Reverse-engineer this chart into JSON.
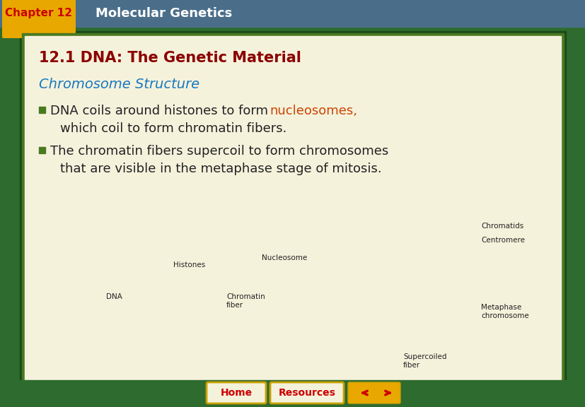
{
  "bg_outer": "#2e6b2e",
  "bg_header": "#4a6e8a",
  "bg_chapter_tab": "#e8a800",
  "bg_content": "#f5f2dc",
  "header_text": "Molecular Genetics",
  "chapter_text": "Chapter 12",
  "section_title": "12.1 DNA: The Genetic Material",
  "section_title_color": "#8b0000",
  "subsection_title": "Chromosome Structure",
  "subsection_color": "#1a7abf",
  "bullet1_text1": "■ DNA coils around histones to form ",
  "bullet1_highlight": "nucleosomes,",
  "bullet1_text2": " which coil to form chromatin fibers.",
  "bullet2_text1": "■ The chromatin fibers supercoil to form chromosomes",
  "bullet2_text2": "  that are visible in the metaphase stage of mitosis.",
  "bullet_color": "#222222",
  "highlight_color": "#cc4400",
  "bottom_bar_color": "#2e6b2e",
  "home_btn_color": "#f5f2dc",
  "home_btn_border": "#c8a000",
  "resources_btn_color": "#f5f2dc",
  "nav_arrow_bg": "#e8a800",
  "nav_arrow_color": "#cc0000",
  "border_inner_color": "#4a7a20",
  "border_outer_color": "#2e6b2e"
}
